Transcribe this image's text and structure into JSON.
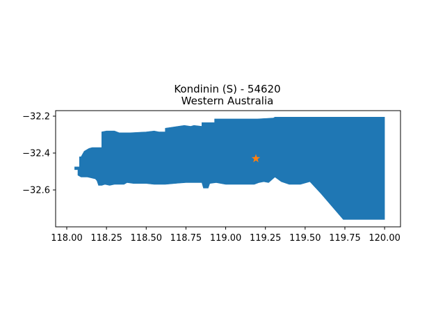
{
  "chart_data": {
    "type": "map",
    "title": "Kondinin (S) - 54620",
    "subtitle": "Western Australia",
    "xlabel": "",
    "ylabel": "",
    "xlim": [
      117.93,
      120.1
    ],
    "ylim": [
      -32.8,
      -32.17
    ],
    "x_ticks": [
      "118.00",
      "118.25",
      "118.50",
      "118.75",
      "119.00",
      "119.25",
      "119.50",
      "119.75",
      "120.00"
    ],
    "y_ticks": [
      "−32.2",
      "−32.4",
      "−32.6"
    ],
    "x_tick_values": [
      118.0,
      118.25,
      118.5,
      118.75,
      119.0,
      119.25,
      119.5,
      119.75,
      120.0
    ],
    "y_tick_values": [
      -32.2,
      -32.4,
      -32.6
    ],
    "grid": false,
    "fill_color": "#1f77b4",
    "marker_color": "#ff7f0e",
    "marker_symbol": "star",
    "marker": {
      "lon": 119.19,
      "lat": -32.43
    },
    "polygon": [
      [
        118.05,
        -32.475
      ],
      [
        118.08,
        -32.475
      ],
      [
        118.08,
        -32.42
      ],
      [
        118.09,
        -32.42
      ],
      [
        118.11,
        -32.39
      ],
      [
        118.14,
        -32.375
      ],
      [
        118.16,
        -32.37
      ],
      [
        118.22,
        -32.37
      ],
      [
        118.22,
        -32.31
      ],
      [
        118.22,
        -32.285
      ],
      [
        118.25,
        -32.28
      ],
      [
        118.3,
        -32.28
      ],
      [
        118.33,
        -32.29
      ],
      [
        118.4,
        -32.29
      ],
      [
        118.5,
        -32.285
      ],
      [
        118.55,
        -32.28
      ],
      [
        118.58,
        -32.285
      ],
      [
        118.62,
        -32.285
      ],
      [
        118.62,
        -32.265
      ],
      [
        118.66,
        -32.26
      ],
      [
        118.7,
        -32.255
      ],
      [
        118.74,
        -32.25
      ],
      [
        118.78,
        -32.255
      ],
      [
        118.8,
        -32.25
      ],
      [
        118.85,
        -32.255
      ],
      [
        118.85,
        -32.235
      ],
      [
        118.88,
        -32.235
      ],
      [
        118.93,
        -32.235
      ],
      [
        118.93,
        -32.215
      ],
      [
        119.0,
        -32.215
      ],
      [
        119.1,
        -32.215
      ],
      [
        119.2,
        -32.215
      ],
      [
        119.3,
        -32.21
      ],
      [
        119.31,
        -32.205
      ],
      [
        119.5,
        -32.205
      ],
      [
        119.7,
        -32.205
      ],
      [
        120.0,
        -32.205
      ],
      [
        120.0,
        -32.76
      ],
      [
        119.74,
        -32.76
      ],
      [
        119.68,
        -32.7
      ],
      [
        119.6,
        -32.62
      ],
      [
        119.53,
        -32.555
      ],
      [
        119.47,
        -32.57
      ],
      [
        119.4,
        -32.57
      ],
      [
        119.35,
        -32.555
      ],
      [
        119.31,
        -32.53
      ],
      [
        119.27,
        -32.56
      ],
      [
        119.24,
        -32.555
      ],
      [
        119.21,
        -32.56
      ],
      [
        119.18,
        -32.57
      ],
      [
        119.0,
        -32.57
      ],
      [
        118.97,
        -32.565
      ],
      [
        118.94,
        -32.56
      ],
      [
        118.9,
        -32.565
      ],
      [
        118.89,
        -32.59
      ],
      [
        118.86,
        -32.59
      ],
      [
        118.85,
        -32.56
      ],
      [
        118.75,
        -32.56
      ],
      [
        118.68,
        -32.565
      ],
      [
        118.62,
        -32.57
      ],
      [
        118.55,
        -32.57
      ],
      [
        118.5,
        -32.565
      ],
      [
        118.42,
        -32.565
      ],
      [
        118.38,
        -32.56
      ],
      [
        118.36,
        -32.57
      ],
      [
        118.3,
        -32.57
      ],
      [
        118.27,
        -32.575
      ],
      [
        118.24,
        -32.57
      ],
      [
        118.22,
        -32.575
      ],
      [
        118.2,
        -32.575
      ],
      [
        118.19,
        -32.55
      ],
      [
        118.18,
        -32.54
      ],
      [
        118.13,
        -32.53
      ],
      [
        118.09,
        -32.53
      ],
      [
        118.07,
        -32.52
      ],
      [
        118.07,
        -32.49
      ],
      [
        118.05,
        -32.49
      ]
    ]
  }
}
